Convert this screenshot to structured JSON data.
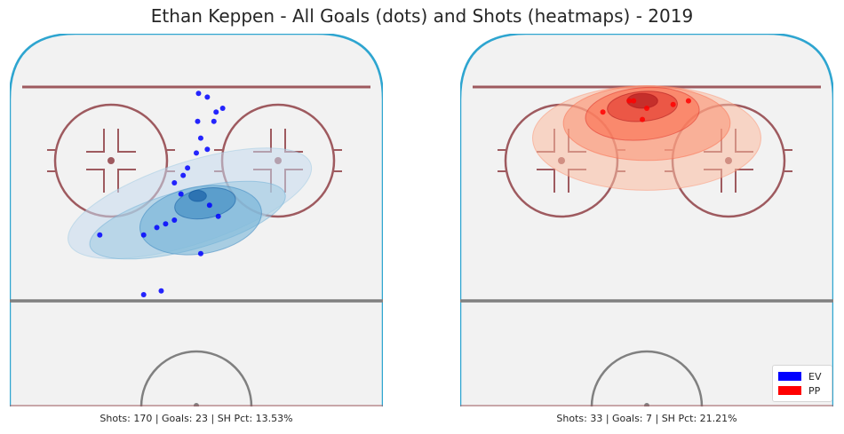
{
  "title": "Ethan Keppen - All Goals (dots) and Shots (heatmaps) - 2019",
  "colors": {
    "ev": "#0000ff",
    "pp": "#ff0000",
    "ev_heat": [
      "#c6dbef",
      "#9ecae1",
      "#6baed6",
      "#3182bd",
      "#08519c"
    ],
    "pp_heat": [
      "#fcbba1",
      "#fc9272",
      "#fb6a4a",
      "#de2d26",
      "#a50f15"
    ],
    "rink_outline": "#2ea5d0",
    "rink_lines": "#9e5a5f",
    "center_line": "#808080",
    "ice": "#f2f2f2"
  },
  "legend": {
    "placement": "bottom-right",
    "items": [
      {
        "label": "EV",
        "color": "#0000ff"
      },
      {
        "label": "PP",
        "color": "#ff0000"
      }
    ]
  },
  "chart_data": [
    {
      "type": "scatter",
      "panel": "left",
      "series_name": "EV",
      "stats_text": "Shots: 170 | Goals: 23 | SH Pct: 13.53%",
      "xlim": [
        -42.5,
        42.5
      ],
      "ylim": [
        0,
        100
      ],
      "goals": [
        {
          "x": 0.5,
          "y": 84
        },
        {
          "x": 0.3,
          "y": 76.5
        },
        {
          "x": 2.5,
          "y": 83
        },
        {
          "x": 4,
          "y": 76.5
        },
        {
          "x": 4.5,
          "y": 79
        },
        {
          "x": 6,
          "y": 80
        },
        {
          "x": 1,
          "y": 72
        },
        {
          "x": 0,
          "y": 68
        },
        {
          "x": -2,
          "y": 64
        },
        {
          "x": -3,
          "y": 62
        },
        {
          "x": -5,
          "y": 60
        },
        {
          "x": -3.5,
          "y": 57
        },
        {
          "x": -7,
          "y": 49
        },
        {
          "x": -5,
          "y": 50
        },
        {
          "x": -9,
          "y": 48
        },
        {
          "x": -12,
          "y": 46
        },
        {
          "x": -8,
          "y": 31
        },
        {
          "x": -12,
          "y": 30
        },
        {
          "x": 2.5,
          "y": 69
        },
        {
          "x": 3,
          "y": 54
        },
        {
          "x": 5,
          "y": 51
        },
        {
          "x": 1,
          "y": 41
        },
        {
          "x": -22,
          "y": 46
        }
      ],
      "heat_levels": [
        {
          "cx": -1.5,
          "cy": 54.5,
          "rx": 29,
          "ry": 11,
          "rot": -18
        },
        {
          "cx": -2,
          "cy": 50,
          "rx": 23,
          "ry": 8,
          "rot": -15
        },
        {
          "cx": 1,
          "cy": 50,
          "rx": 14,
          "ry": 9,
          "rot": -10
        },
        {
          "cx": 2,
          "cy": 54.5,
          "rx": 7,
          "ry": 4,
          "rot": -10
        },
        {
          "cx": 0.3,
          "cy": 56.5,
          "rx": 2,
          "ry": 1.5,
          "rot": 0
        }
      ]
    },
    {
      "type": "scatter",
      "panel": "right",
      "series_name": "PP",
      "stats_text": "Shots: 33 | Goals: 7 | SH Pct: 21.21%",
      "xlim": [
        -42.5,
        42.5
      ],
      "ylim": [
        0,
        100
      ],
      "goals": [
        {
          "x": -4,
          "y": 82
        },
        {
          "x": -3,
          "y": 82
        },
        {
          "x": 0,
          "y": 80
        },
        {
          "x": 6,
          "y": 81
        },
        {
          "x": 9.5,
          "y": 82
        },
        {
          "x": -1,
          "y": 77
        },
        {
          "x": -10,
          "y": 79
        }
      ],
      "heat_levels": [
        {
          "cx": 0,
          "cy": 72,
          "rx": 26,
          "ry": 14,
          "rot": 0
        },
        {
          "cx": 0,
          "cy": 76,
          "rx": 19,
          "ry": 10,
          "rot": 0
        },
        {
          "cx": -1,
          "cy": 78.5,
          "rx": 13,
          "ry": 7,
          "rot": -5
        },
        {
          "cx": -1,
          "cy": 80.5,
          "rx": 8,
          "ry": 4,
          "rot": -5
        },
        {
          "cx": -1,
          "cy": 82,
          "rx": 3.5,
          "ry": 2,
          "rot": 0
        }
      ]
    }
  ]
}
